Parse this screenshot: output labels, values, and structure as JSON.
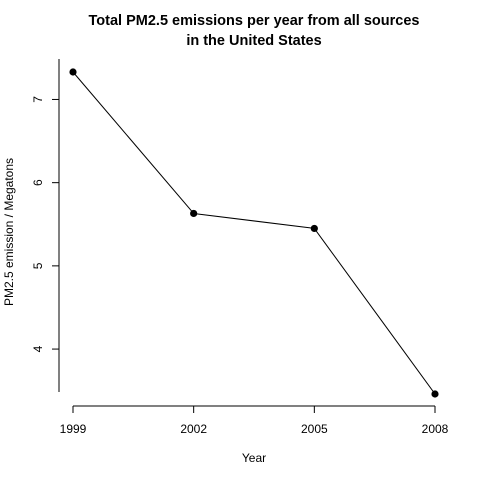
{
  "chart_data": {
    "type": "line",
    "title_line1": "Total PM2.5 emissions per year from all sources",
    "title_line2": "in the United States",
    "xlabel": "Year",
    "ylabel": "PM2.5 emission / Megatons",
    "x": [
      1999,
      2002,
      2005,
      2008
    ],
    "series": [
      {
        "values": [
          7.33,
          5.63,
          5.45,
          3.46
        ]
      }
    ],
    "xticks": [
      1999,
      2002,
      2005,
      2008
    ],
    "yticks": [
      4,
      5,
      6,
      7
    ],
    "xlim": [
      1999,
      2008
    ],
    "ylim": [
      3.46,
      7.33
    ],
    "grid": false,
    "axis_style": "r-default-no-box",
    "marker": "filled-circle",
    "line_color": "#000000",
    "marker_color": "#000000"
  }
}
